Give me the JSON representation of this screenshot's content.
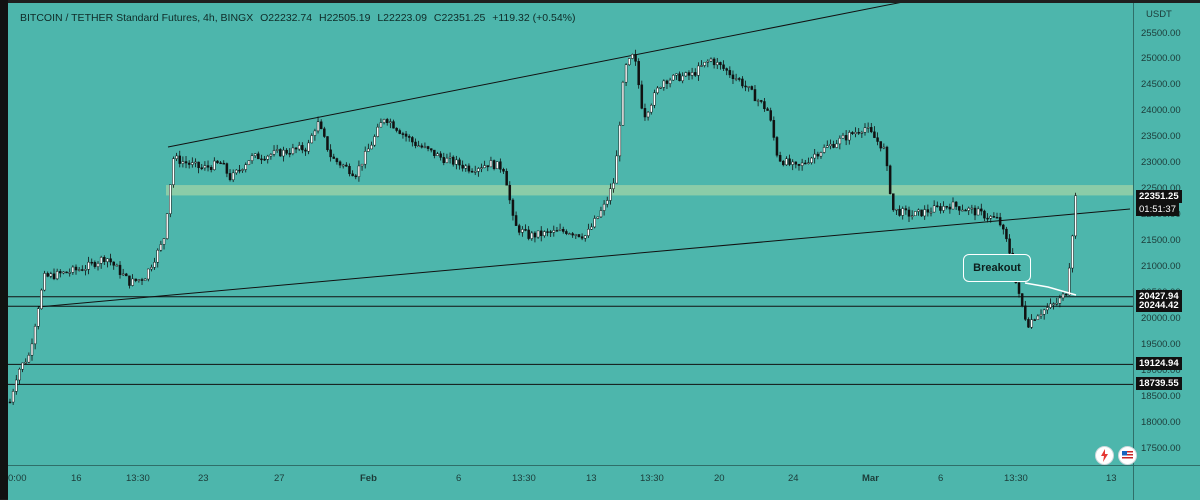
{
  "header": {
    "symbol": "BITCOIN / TETHER Standard Futures, 4h, BINGX",
    "open": "O22232.74",
    "high": "H22505.19",
    "low": "L22223.09",
    "close": "C22351.25",
    "change": "+119.32 (+0.54%)"
  },
  "price_axis": {
    "unit": "USDT",
    "ticks": [
      "25500.00",
      "25000.00",
      "24500.00",
      "24000.00",
      "23500.00",
      "23000.00",
      "22500.00",
      "22000.00",
      "21500.00",
      "21000.00",
      "20500.00",
      "20000.00",
      "19500.00",
      "19000.00",
      "18500.00",
      "18000.00",
      "17500.00"
    ],
    "last_price": "22351.25",
    "countdown": "01:51:37",
    "level_labels": [
      "20427.94",
      "20244.42",
      "19124.94",
      "18739.55"
    ]
  },
  "time_axis": {
    "labels": [
      "0:00",
      "16",
      "13:30",
      "23",
      "27",
      "Feb",
      "6",
      "13:30",
      "13",
      "13:30",
      "20",
      "24",
      "Mar",
      "6",
      "13:30",
      "13"
    ]
  },
  "annotation": {
    "breakout": "Breakout"
  },
  "colors": {
    "background": "#4db6ac",
    "zone": "#a5d6a7",
    "candle": "#111111",
    "lines": "#111111"
  },
  "icons": {
    "flash": "flash-icon",
    "flag": "us-flag-icon"
  },
  "chart_data": {
    "type": "candlestick",
    "symbol": "BITCOIN / TETHER Standard Futures",
    "interval": "4h",
    "ylim": [
      17300,
      26000
    ],
    "y_unit": "USDT",
    "grid": false,
    "last_price": 22351.25,
    "horizontal_levels": [
      20427.94,
      20244.42,
      19124.94,
      18739.55
    ],
    "zone": [
      22380,
      22580
    ],
    "price_path": [
      [
        0.0,
        18400
      ],
      [
        0.008,
        19000
      ],
      [
        0.02,
        19300
      ],
      [
        0.03,
        20300
      ],
      [
        0.036,
        20800
      ],
      [
        0.06,
        20900
      ],
      [
        0.08,
        21000
      ],
      [
        0.1,
        21200
      ],
      [
        0.11,
        21000
      ],
      [
        0.125,
        20700
      ],
      [
        0.14,
        20800
      ],
      [
        0.16,
        21500
      ],
      [
        0.17,
        23100
      ],
      [
        0.2,
        22900
      ],
      [
        0.22,
        23000
      ],
      [
        0.23,
        22700
      ],
      [
        0.25,
        23100
      ],
      [
        0.28,
        23200
      ],
      [
        0.31,
        23300
      ],
      [
        0.32,
        23800
      ],
      [
        0.335,
        23100
      ],
      [
        0.36,
        22800
      ],
      [
        0.38,
        23500
      ],
      [
        0.39,
        23900
      ],
      [
        0.42,
        23400
      ],
      [
        0.45,
        23100
      ],
      [
        0.48,
        22900
      ],
      [
        0.5,
        23000
      ],
      [
        0.515,
        22900
      ],
      [
        0.525,
        21800
      ],
      [
        0.54,
        21600
      ],
      [
        0.58,
        21700
      ],
      [
        0.6,
        21600
      ],
      [
        0.62,
        22200
      ],
      [
        0.63,
        22700
      ],
      [
        0.64,
        24800
      ],
      [
        0.65,
        25100
      ],
      [
        0.66,
        23900
      ],
      [
        0.68,
        24600
      ],
      [
        0.71,
        24700
      ],
      [
        0.73,
        25000
      ],
      [
        0.76,
        24600
      ],
      [
        0.79,
        24000
      ],
      [
        0.8,
        23100
      ],
      [
        0.82,
        22900
      ],
      [
        0.84,
        23200
      ],
      [
        0.87,
        23500
      ],
      [
        0.89,
        23700
      ],
      [
        0.91,
        23300
      ],
      [
        0.92,
        22100
      ],
      [
        0.94,
        22000
      ],
      [
        0.96,
        22100
      ],
      [
        0.98,
        22200
      ],
      [
        1.0,
        22100
      ],
      [
        1.03,
        21900
      ],
      [
        1.04,
        21400
      ],
      [
        1.05,
        20500
      ],
      [
        1.06,
        19900
      ],
      [
        1.07,
        20100
      ],
      [
        1.08,
        20200
      ],
      [
        1.09,
        20300
      ],
      [
        1.1,
        20500
      ],
      [
        1.105,
        21300
      ],
      [
        1.11,
        22350
      ]
    ]
  }
}
